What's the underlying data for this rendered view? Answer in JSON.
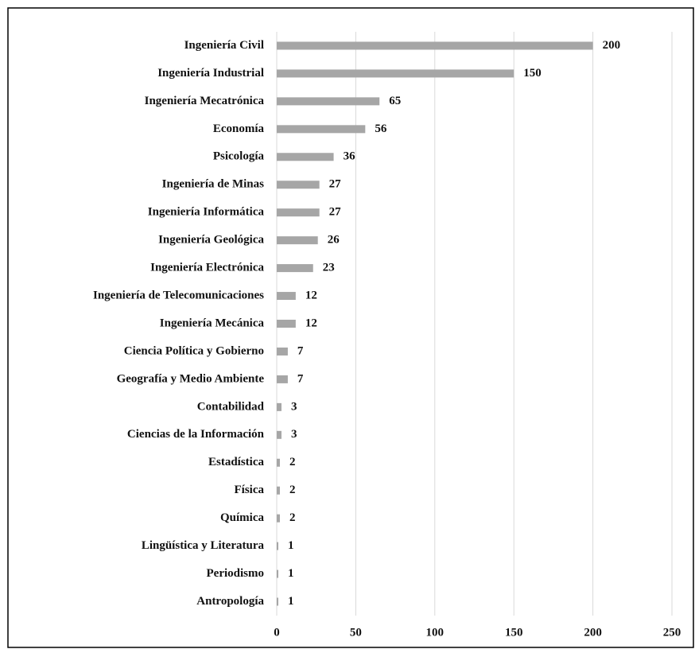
{
  "chart_data": {
    "type": "bar",
    "orientation": "horizontal",
    "categories": [
      "Ingeniería Civil",
      "Ingeniería Industrial",
      "Ingeniería Mecatrónica",
      "Economía",
      "Psicología",
      "Ingeniería de Minas",
      "Ingeniería Informática",
      "Ingeniería Geológica",
      "Ingeniería Electrónica",
      "Ingeniería de Telecomunicaciones",
      "Ingeniería Mecánica",
      "Ciencia Política y Gobierno",
      "Geografía y Medio Ambiente",
      "Contabilidad",
      "Ciencias de la Información",
      "Estadística",
      "Física",
      "Química",
      "Lingüística y Literatura",
      "Periodismo",
      "Antropología"
    ],
    "values": [
      200,
      150,
      65,
      56,
      36,
      27,
      27,
      26,
      23,
      12,
      12,
      7,
      7,
      3,
      3,
      2,
      2,
      2,
      1,
      1,
      1
    ],
    "color": "#a6a6a6",
    "xlim": [
      0,
      250
    ],
    "xticks": [
      0,
      50,
      100,
      150,
      200,
      250
    ],
    "grid": true
  }
}
